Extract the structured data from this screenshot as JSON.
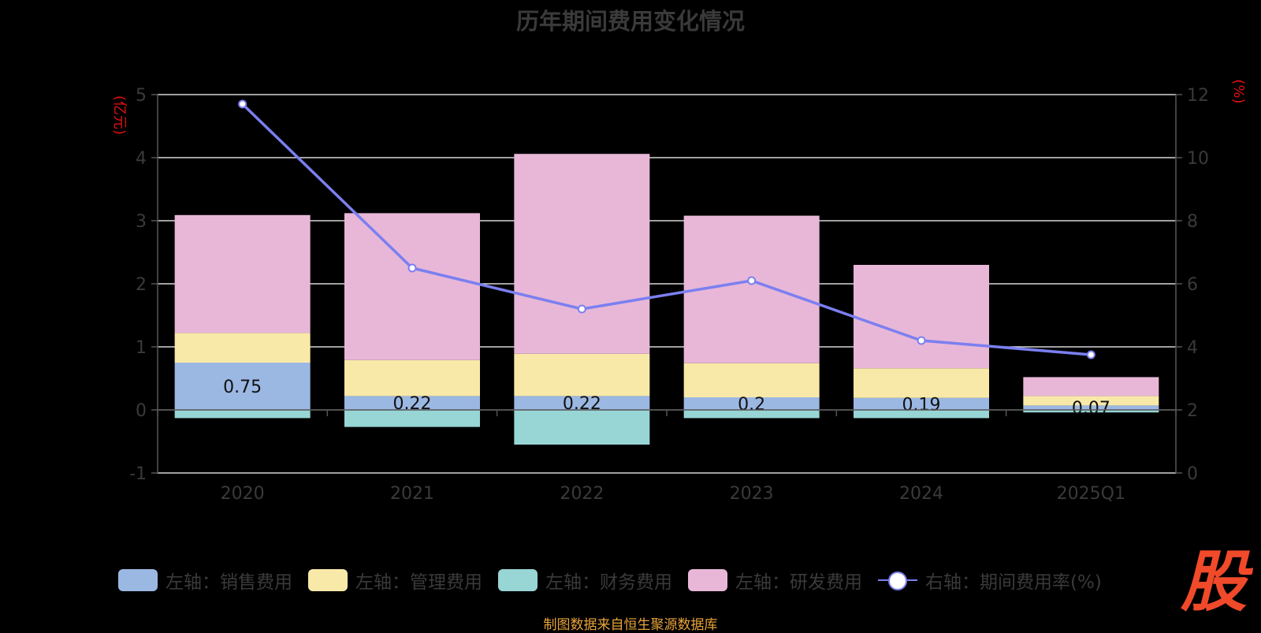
{
  "title": "历年期间费用变化情况",
  "source": "制图数据来自恒生聚源数据库",
  "brand_glyph": "股",
  "colors": {
    "sales": "#9bb8e3",
    "admin": "#f9e9a8",
    "finance": "#98d5d5",
    "rd": "#e8b7d8",
    "rate_line": "#7b7ff0",
    "grid": "#ffffff",
    "axis_text": "#3a3a3a",
    "unit_text": "#e01010"
  },
  "chart_data": {
    "type": "bar",
    "stacked": true,
    "categories": [
      "2020",
      "2021",
      "2022",
      "2023",
      "2024",
      "2025Q1"
    ],
    "left_axis": {
      "unit": "(亿元)",
      "ylim": [
        -1,
        5
      ],
      "ticks": [
        "-1",
        "0",
        "1",
        "2",
        "3",
        "4",
        "5"
      ]
    },
    "right_axis": {
      "unit": "(%)",
      "ylim": [
        0,
        12
      ],
      "ticks": [
        "0",
        "2",
        "4",
        "6",
        "8",
        "10",
        "12"
      ]
    },
    "series": [
      {
        "name": "左轴：销售费用",
        "key": "sales",
        "axis": "left",
        "values": [
          0.75,
          0.22,
          0.22,
          0.2,
          0.19,
          0.07
        ],
        "labels": [
          "0.75",
          "0.22",
          "0.22",
          "0.2",
          "0.19",
          "0.07"
        ]
      },
      {
        "name": "左轴：管理费用",
        "key": "admin",
        "axis": "left",
        "values": [
          0.47,
          0.57,
          0.67,
          0.54,
          0.47,
          0.15
        ]
      },
      {
        "name": "左轴：财务费用",
        "key": "finance",
        "axis": "left",
        "values": [
          -0.13,
          -0.27,
          -0.55,
          -0.13,
          -0.13,
          -0.04
        ]
      },
      {
        "name": "左轴：研发费用",
        "key": "rd",
        "axis": "left",
        "values": [
          1.87,
          2.33,
          3.17,
          2.34,
          1.64,
          0.3
        ]
      },
      {
        "name": "右轴：期间费用率(%)",
        "key": "rate_line",
        "axis": "right",
        "type": "line",
        "values": [
          11.7,
          6.5,
          5.2,
          6.1,
          4.2,
          3.75
        ]
      }
    ],
    "grid": true,
    "legend_position": "bottom"
  }
}
